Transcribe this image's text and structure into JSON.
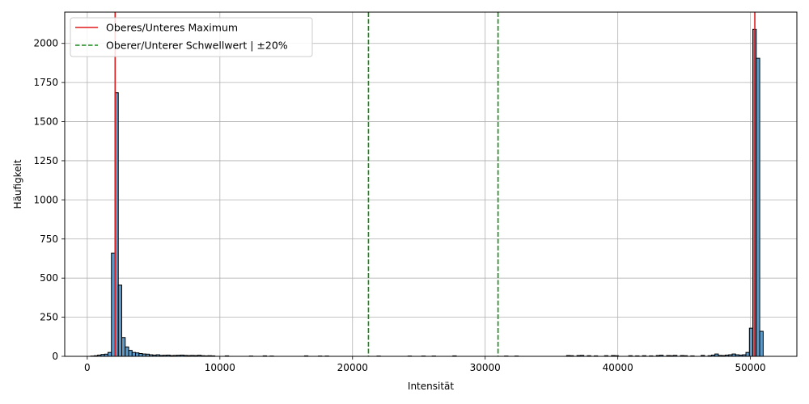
{
  "chart_data": {
    "type": "bar",
    "subtype": "histogram",
    "xlabel": "Intensität",
    "ylabel": "Häufigkeit",
    "xlim": [
      -1700,
      53500
    ],
    "ylim": [
      0,
      2200
    ],
    "xticks": [
      0,
      10000,
      20000,
      30000,
      40000,
      50000
    ],
    "yticks": [
      0,
      250,
      500,
      750,
      1000,
      1250,
      1500,
      1750,
      2000
    ],
    "grid": true,
    "legend_position": "top-left",
    "bar_color": "#5b9ac9",
    "bin_width": 260,
    "bins": [
      {
        "x": 260,
        "count": 2
      },
      {
        "x": 520,
        "count": 4
      },
      {
        "x": 780,
        "count": 8
      },
      {
        "x": 1040,
        "count": 12
      },
      {
        "x": 1300,
        "count": 14
      },
      {
        "x": 1560,
        "count": 25
      },
      {
        "x": 1820,
        "count": 660
      },
      {
        "x": 2080,
        "count": 1685
      },
      {
        "x": 2340,
        "count": 455
      },
      {
        "x": 2600,
        "count": 120
      },
      {
        "x": 2860,
        "count": 60
      },
      {
        "x": 3120,
        "count": 38
      },
      {
        "x": 3380,
        "count": 25
      },
      {
        "x": 3640,
        "count": 22
      },
      {
        "x": 3900,
        "count": 18
      },
      {
        "x": 4160,
        "count": 15
      },
      {
        "x": 4420,
        "count": 14
      },
      {
        "x": 4680,
        "count": 10
      },
      {
        "x": 4940,
        "count": 8
      },
      {
        "x": 5200,
        "count": 10
      },
      {
        "x": 5460,
        "count": 6
      },
      {
        "x": 5720,
        "count": 7
      },
      {
        "x": 5980,
        "count": 8
      },
      {
        "x": 6240,
        "count": 5
      },
      {
        "x": 6500,
        "count": 6
      },
      {
        "x": 6760,
        "count": 7
      },
      {
        "x": 7020,
        "count": 8
      },
      {
        "x": 7280,
        "count": 6
      },
      {
        "x": 7540,
        "count": 5
      },
      {
        "x": 7800,
        "count": 6
      },
      {
        "x": 8060,
        "count": 5
      },
      {
        "x": 8320,
        "count": 7
      },
      {
        "x": 8580,
        "count": 4
      },
      {
        "x": 8840,
        "count": 3
      },
      {
        "x": 9100,
        "count": 4
      },
      {
        "x": 9360,
        "count": 3
      },
      {
        "x": 10400,
        "count": 3
      },
      {
        "x": 12220,
        "count": 2
      },
      {
        "x": 13260,
        "count": 3
      },
      {
        "x": 13780,
        "count": 2
      },
      {
        "x": 16380,
        "count": 3
      },
      {
        "x": 17420,
        "count": 2
      },
      {
        "x": 17940,
        "count": 2
      },
      {
        "x": 21840,
        "count": 2
      },
      {
        "x": 24180,
        "count": 2
      },
      {
        "x": 25220,
        "count": 2
      },
      {
        "x": 26000,
        "count": 2
      },
      {
        "x": 27560,
        "count": 3
      },
      {
        "x": 31460,
        "count": 2
      },
      {
        "x": 32240,
        "count": 2
      },
      {
        "x": 36140,
        "count": 5
      },
      {
        "x": 36400,
        "count": 4
      },
      {
        "x": 36920,
        "count": 5
      },
      {
        "x": 37180,
        "count": 6
      },
      {
        "x": 37700,
        "count": 4
      },
      {
        "x": 38220,
        "count": 3
      },
      {
        "x": 39000,
        "count": 4
      },
      {
        "x": 39520,
        "count": 5
      },
      {
        "x": 39780,
        "count": 4
      },
      {
        "x": 40820,
        "count": 4
      },
      {
        "x": 41340,
        "count": 3
      },
      {
        "x": 41860,
        "count": 4
      },
      {
        "x": 42380,
        "count": 3
      },
      {
        "x": 42900,
        "count": 5
      },
      {
        "x": 43160,
        "count": 7
      },
      {
        "x": 43680,
        "count": 5
      },
      {
        "x": 43940,
        "count": 4
      },
      {
        "x": 44200,
        "count": 6
      },
      {
        "x": 44720,
        "count": 5
      },
      {
        "x": 44980,
        "count": 4
      },
      {
        "x": 45500,
        "count": 3
      },
      {
        "x": 46280,
        "count": 6
      },
      {
        "x": 46800,
        "count": 4
      },
      {
        "x": 47060,
        "count": 8
      },
      {
        "x": 47320,
        "count": 15
      },
      {
        "x": 47580,
        "count": 6
      },
      {
        "x": 47840,
        "count": 5
      },
      {
        "x": 48100,
        "count": 8
      },
      {
        "x": 48360,
        "count": 10
      },
      {
        "x": 48620,
        "count": 15
      },
      {
        "x": 48880,
        "count": 10
      },
      {
        "x": 49140,
        "count": 8
      },
      {
        "x": 49400,
        "count": 10
      },
      {
        "x": 49660,
        "count": 25
      },
      {
        "x": 49920,
        "count": 180
      },
      {
        "x": 50180,
        "count": 2090
      },
      {
        "x": 50440,
        "count": 1905
      },
      {
        "x": 50700,
        "count": 160
      }
    ],
    "vlines": [
      {
        "series": 0,
        "x": 2100
      },
      {
        "series": 0,
        "x": 50330
      },
      {
        "series": 1,
        "x": 21200
      },
      {
        "series": 1,
        "x": 30970
      }
    ],
    "series": [
      {
        "name": "Oberes/Unteres Maximum",
        "color": "#e31a1c",
        "style": "solid"
      },
      {
        "name": "Oberer/Unterer Schwellwert | ±20%",
        "color": "#128c12",
        "style": "dashed"
      }
    ]
  }
}
